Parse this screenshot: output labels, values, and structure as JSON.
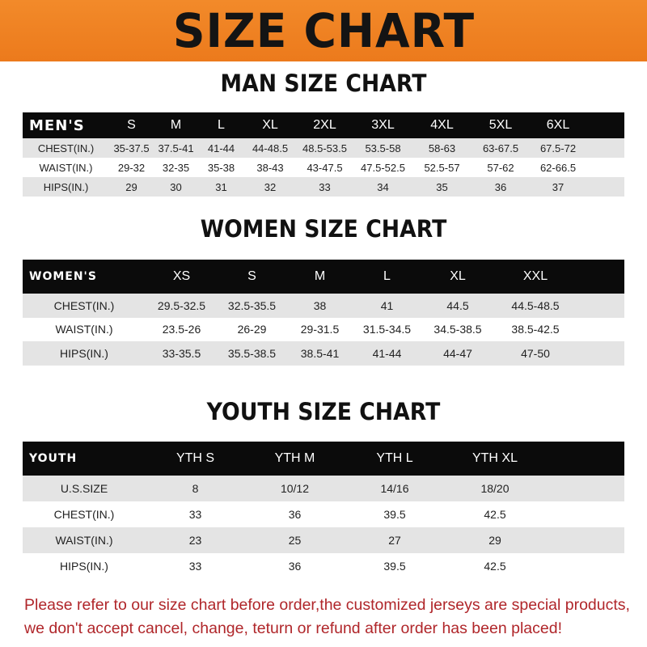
{
  "banner_title": "SIZE CHART",
  "colors": {
    "banner": "#ef8322",
    "header_row": "#0b0b0b",
    "stripe": "#e4e4e4",
    "notice": "#b0262a"
  },
  "men": {
    "title": "MAN SIZE CHART",
    "header": [
      "MEN'S",
      "S",
      "M",
      "L",
      "XL",
      "2XL",
      "3XL",
      "4XL",
      "5XL",
      "6XL"
    ],
    "rows": [
      [
        "CHEST(IN.)",
        "35-37.5",
        "37.5-41",
        "41-44",
        "44-48.5",
        "48.5-53.5",
        "53.5-58",
        "58-63",
        "63-67.5",
        "67.5-72"
      ],
      [
        "WAIST(IN.)",
        "29-32",
        "32-35",
        "35-38",
        "38-43",
        "43-47.5",
        "47.5-52.5",
        "52.5-57",
        "57-62",
        "62-66.5"
      ],
      [
        "HIPS(IN.)",
        "29",
        "30",
        "31",
        "32",
        "33",
        "34",
        "35",
        "36",
        "37"
      ]
    ]
  },
  "women": {
    "title": "WOMEN SIZE CHART",
    "header": [
      "WOMEN'S",
      "XS",
      "S",
      "M",
      "L",
      "XL",
      "XXL"
    ],
    "rows": [
      [
        "CHEST(IN.)",
        "29.5-32.5",
        "32.5-35.5",
        "38",
        "41",
        "44.5",
        "44.5-48.5"
      ],
      [
        "WAIST(IN.)",
        "23.5-26",
        "26-29",
        "29-31.5",
        "31.5-34.5",
        "34.5-38.5",
        "38.5-42.5"
      ],
      [
        "HIPS(IN.)",
        "33-35.5",
        "35.5-38.5",
        "38.5-41",
        "41-44",
        "44-47",
        "47-50"
      ]
    ]
  },
  "youth": {
    "title": "YOUTH SIZE CHART",
    "header": [
      "YOUTH",
      "YTH S",
      "YTH M",
      "YTH L",
      "YTH XL"
    ],
    "rows": [
      [
        "U.S.SIZE",
        "8",
        "10/12",
        "14/16",
        "18/20"
      ],
      [
        "CHEST(IN.)",
        "33",
        "36",
        "39.5",
        "42.5"
      ],
      [
        "WAIST(IN.)",
        "23",
        "25",
        "27",
        "29"
      ],
      [
        "HIPS(IN.)",
        "33",
        "36",
        "39.5",
        "42.5"
      ]
    ]
  },
  "notice": {
    "line1": "Please refer to our size chart before order,the customized jerseys are special products,",
    "line2": "we don't accept cancel, change, teturn or refund after order has been placed!"
  }
}
